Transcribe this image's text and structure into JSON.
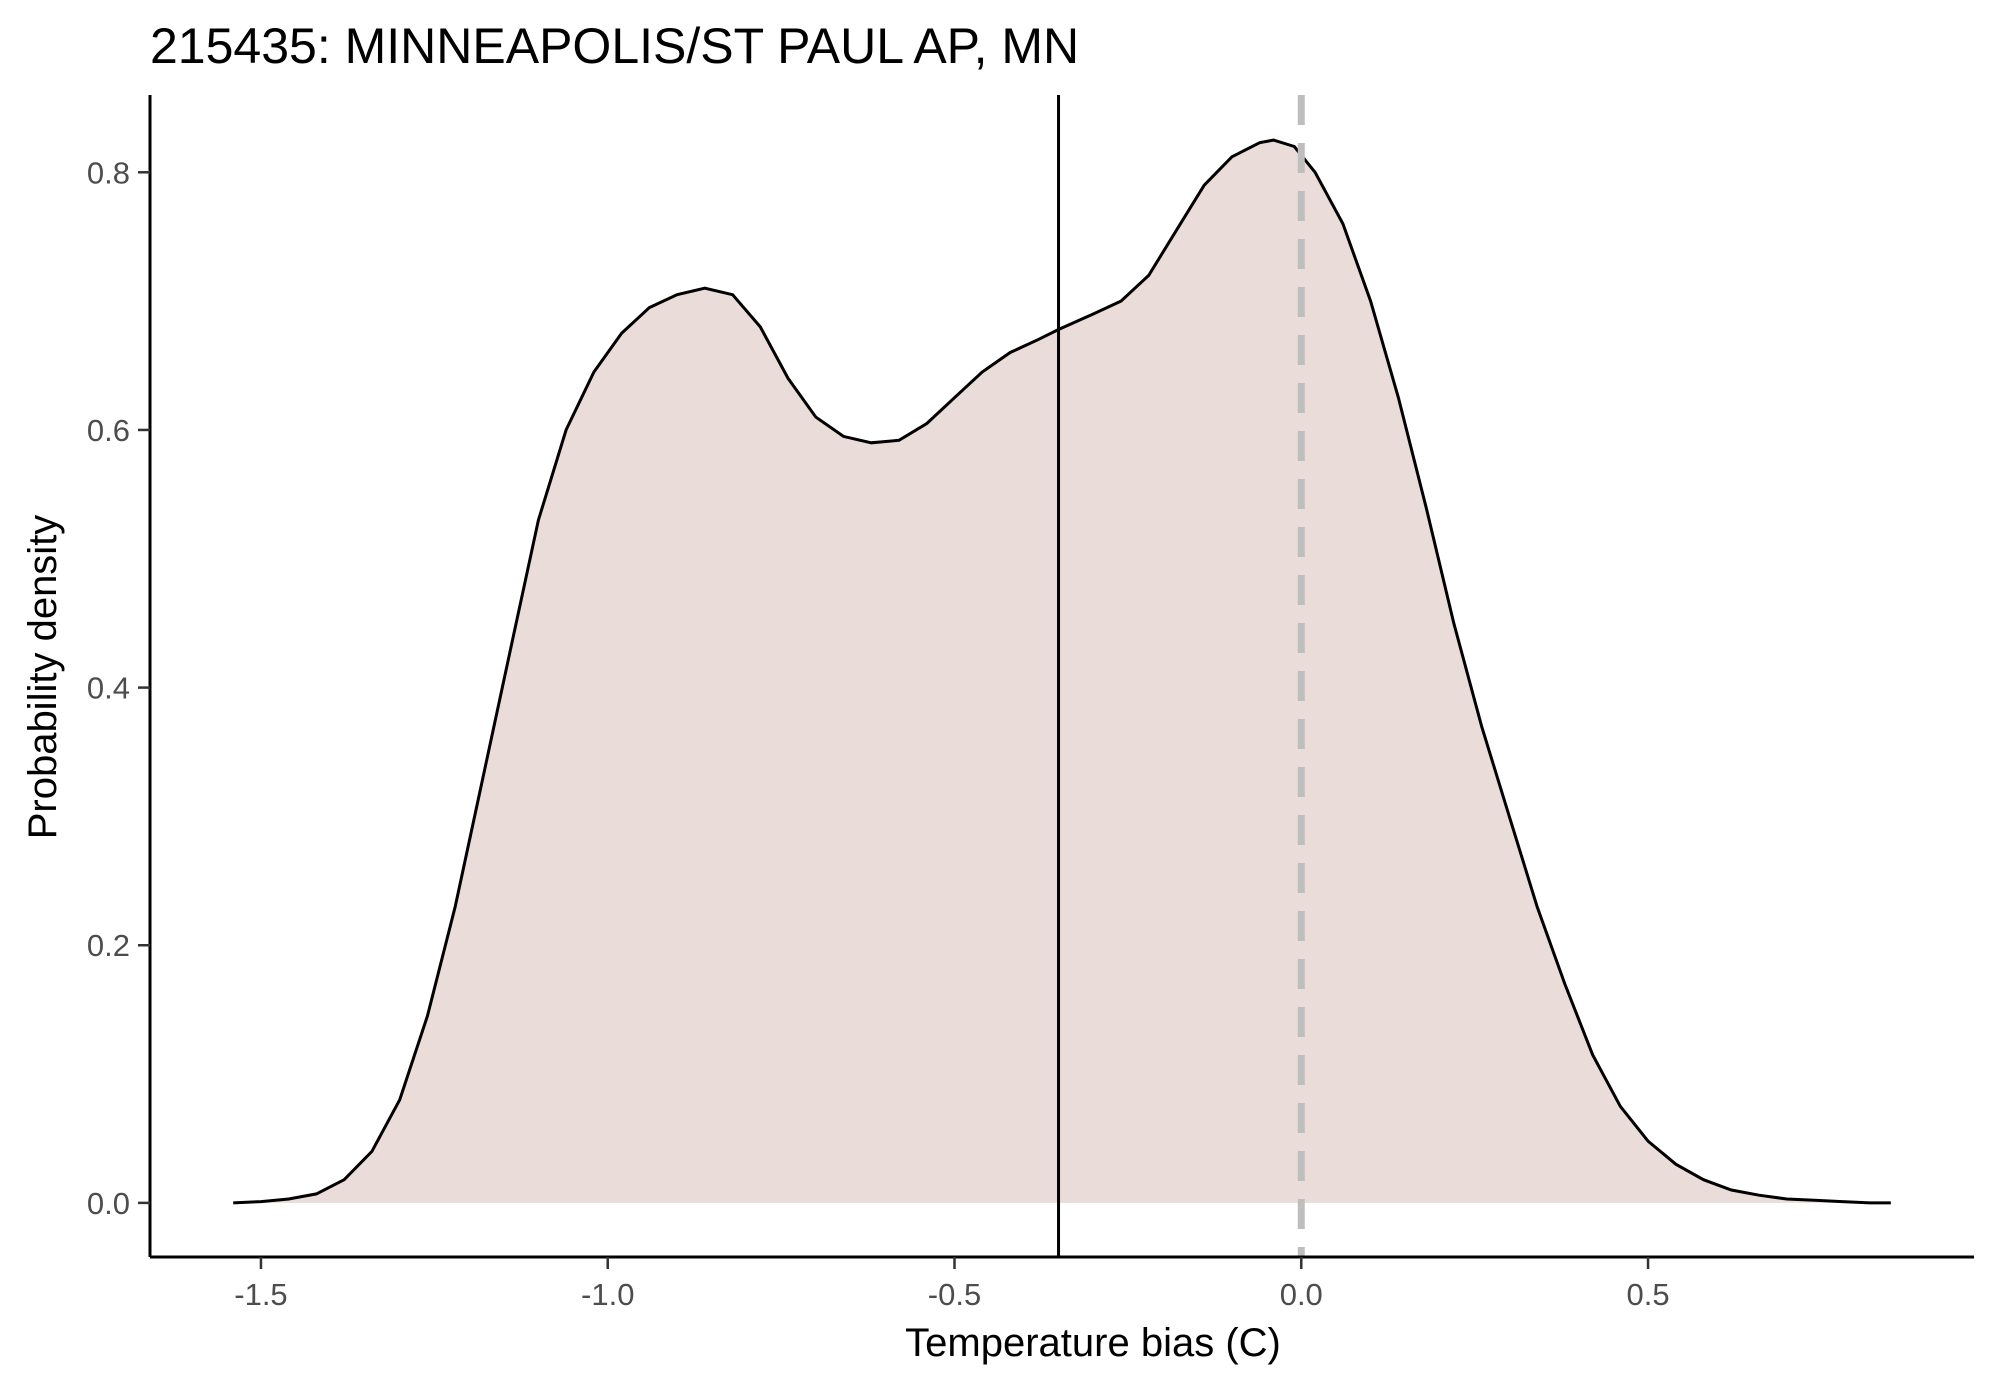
{
  "chart_data": {
    "type": "area",
    "title": "215435: MINNEAPOLIS/ST PAUL AP, MN",
    "xlabel": "Temperature bias (C)",
    "ylabel": "Probability density",
    "xlim": [
      -1.66,
      0.97
    ],
    "ylim": [
      -0.042,
      0.86
    ],
    "grid": false,
    "legend": "none",
    "x_ticks": [
      -1.5,
      -1.0,
      -0.5,
      0.0,
      0.5
    ],
    "x_tick_labels": [
      "-1.5",
      "-1.0",
      "-0.5",
      "0.0",
      "0.5"
    ],
    "y_ticks": [
      0.0,
      0.2,
      0.4,
      0.6,
      0.8
    ],
    "y_tick_labels": [
      "0.0",
      "0.2",
      "0.4",
      "0.6",
      "0.8"
    ],
    "fill_color": "#eadcd8",
    "line_color": "#000000",
    "series": [
      {
        "x": [
          -1.54,
          -1.5,
          -1.46,
          -1.42,
          -1.38,
          -1.34,
          -1.3,
          -1.26,
          -1.22,
          -1.18,
          -1.14,
          -1.1,
          -1.06,
          -1.02,
          -0.98,
          -0.94,
          -0.9,
          -0.86,
          -0.82,
          -0.78,
          -0.74,
          -0.7,
          -0.66,
          -0.62,
          -0.58,
          -0.54,
          -0.5,
          -0.46,
          -0.42,
          -0.38,
          -0.35,
          -0.3,
          -0.26,
          -0.22,
          -0.18,
          -0.14,
          -0.1,
          -0.06,
          -0.04,
          -0.01,
          0.02,
          0.06,
          0.1,
          0.14,
          0.18,
          0.22,
          0.26,
          0.3,
          0.34,
          0.38,
          0.42,
          0.46,
          0.5,
          0.54,
          0.58,
          0.62,
          0.66,
          0.7,
          0.74,
          0.78,
          0.82,
          0.85
        ],
        "y": [
          0.0,
          0.001,
          0.003,
          0.007,
          0.018,
          0.04,
          0.08,
          0.145,
          0.23,
          0.33,
          0.43,
          0.53,
          0.6,
          0.645,
          0.675,
          0.695,
          0.705,
          0.71,
          0.705,
          0.68,
          0.64,
          0.61,
          0.595,
          0.59,
          0.592,
          0.605,
          0.625,
          0.645,
          0.66,
          0.67,
          0.678,
          0.69,
          0.7,
          0.72,
          0.755,
          0.79,
          0.812,
          0.823,
          0.825,
          0.82,
          0.8,
          0.76,
          0.7,
          0.625,
          0.54,
          0.45,
          0.37,
          0.3,
          0.23,
          0.17,
          0.115,
          0.075,
          0.048,
          0.03,
          0.018,
          0.01,
          0.006,
          0.003,
          0.002,
          0.001,
          0.0,
          0.0
        ]
      }
    ],
    "vlines": [
      {
        "x": -0.35,
        "style": "solid",
        "color": "#000000"
      },
      {
        "x": 0.0,
        "style": "dashed",
        "color": "#bebebe"
      }
    ]
  }
}
